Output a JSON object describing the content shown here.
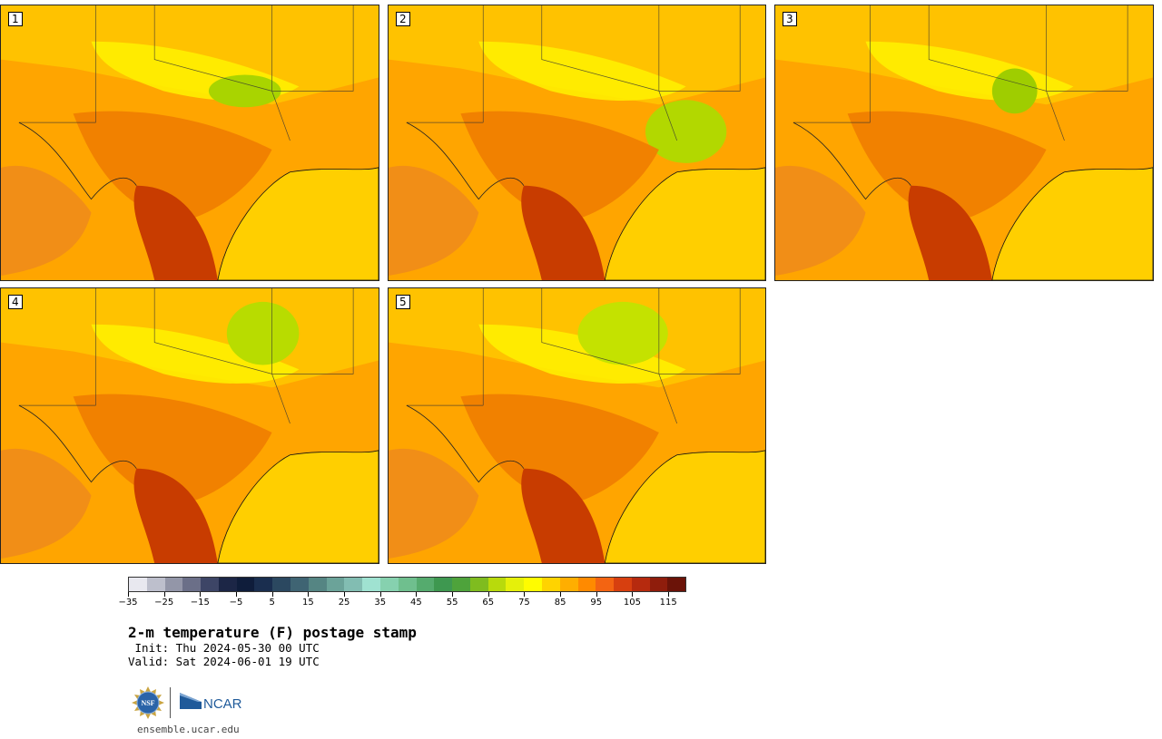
{
  "panels": [
    {
      "label": "1",
      "green_blob": [
        270,
        95,
        40,
        18
      ],
      "green_color": "#a9d400"
    },
    {
      "label": "2",
      "green_blob": [
        330,
        140,
        45,
        35
      ],
      "green_color": "#b2d800"
    },
    {
      "label": "3",
      "green_blob": [
        265,
        95,
        25,
        25
      ],
      "green_color": "#9fcd00"
    },
    {
      "label": "4",
      "green_blob": [
        290,
        50,
        40,
        35
      ],
      "green_color": "#b8dc00"
    },
    {
      "label": "5",
      "green_blob": [
        260,
        50,
        50,
        35
      ],
      "green_color": "#c4e200"
    }
  ],
  "colorbar": {
    "colors": [
      "#e8e8ef",
      "#bdbfcc",
      "#9396a8",
      "#6b6f88",
      "#3d4566",
      "#1c2646",
      "#0f1d3b",
      "#1a2e4f",
      "#2b4860",
      "#3f6473",
      "#558583",
      "#6ba399",
      "#82bdb2",
      "#9fe2d1",
      "#86d1af",
      "#6fbf8e",
      "#55ab6e",
      "#3e9850",
      "#4ea33b",
      "#7fbc1f",
      "#b8da0c",
      "#e5f00a",
      "#fffc00",
      "#ffd300",
      "#ffae00",
      "#ff8a00",
      "#f36412",
      "#d73f0f",
      "#b62a0e",
      "#8f1d0c",
      "#6b1308"
    ],
    "ticks": [
      "−35",
      "−25",
      "−15",
      "−5",
      "5",
      "15",
      "25",
      "35",
      "45",
      "55",
      "65",
      "75",
      "85",
      "95",
      "105",
      "115"
    ]
  },
  "title": "2-m temperature (F) postage stamp",
  "init": " Init: Thu 2024-05-30 00 UTC",
  "valid": "Valid: Sat 2024-06-01 19 UTC",
  "logos": {
    "nsf": "NSF",
    "ncar": "NCAR"
  },
  "url": "ensemble.ucar.edu"
}
